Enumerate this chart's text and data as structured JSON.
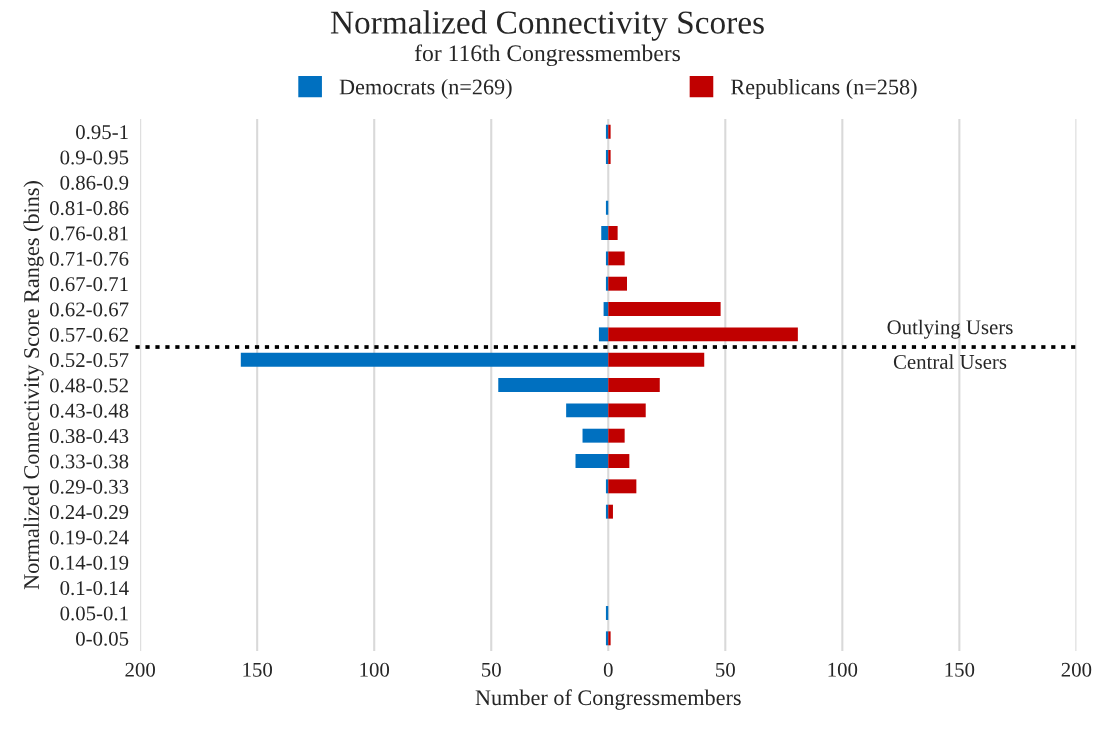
{
  "chart_data": {
    "type": "bar",
    "orientation": "horizontal",
    "title": "Normalized Connectivity Scores",
    "subtitle": "for 116th Congressmembers",
    "xlabel": "Number of Congressmembers",
    "ylabel": "Normalized Connectivity Score Ranges (bins)",
    "categories": [
      "0.95-1",
      "0.9-0.95",
      "0.86-0.9",
      "0.81-0.86",
      "0.76-0.81",
      "0.71-0.76",
      "0.67-0.71",
      "0.62-0.67",
      "0.57-0.62",
      "0.52-0.57",
      "0.48-0.52",
      "0.43-0.48",
      "0.38-0.43",
      "0.33-0.38",
      "0.29-0.33",
      "0.24-0.29",
      "0.19-0.24",
      "0.14-0.19",
      "0.1-0.14",
      "0.05-0.1",
      "0-0.05"
    ],
    "series": [
      {
        "name": "Democrats (n=269)",
        "color": "#0070c0",
        "values": [
          -1,
          -1,
          0,
          -1,
          -3,
          -1,
          -1,
          -2,
          -4,
          -157,
          -47,
          -18,
          -11,
          -14,
          -1,
          -1,
          0,
          0,
          0,
          -1,
          -1
        ]
      },
      {
        "name": "Republicans (n=258)",
        "color": "#c00000",
        "values": [
          1,
          1,
          0,
          0,
          4,
          7,
          8,
          48,
          81,
          41,
          22,
          16,
          7,
          9,
          12,
          2,
          0,
          0,
          0,
          0,
          1
        ]
      }
    ],
    "xlim": [
      -200,
      200
    ],
    "xticks": [
      {
        "value": -200,
        "label": "200"
      },
      {
        "value": -150,
        "label": "150"
      },
      {
        "value": -100,
        "label": "100"
      },
      {
        "value": -50,
        "label": "50"
      },
      0,
      50,
      100,
      150,
      200
    ],
    "stacked": true,
    "annotations": [
      "Outlying Users",
      "Central Users"
    ],
    "grid": "x",
    "legend": "top"
  }
}
